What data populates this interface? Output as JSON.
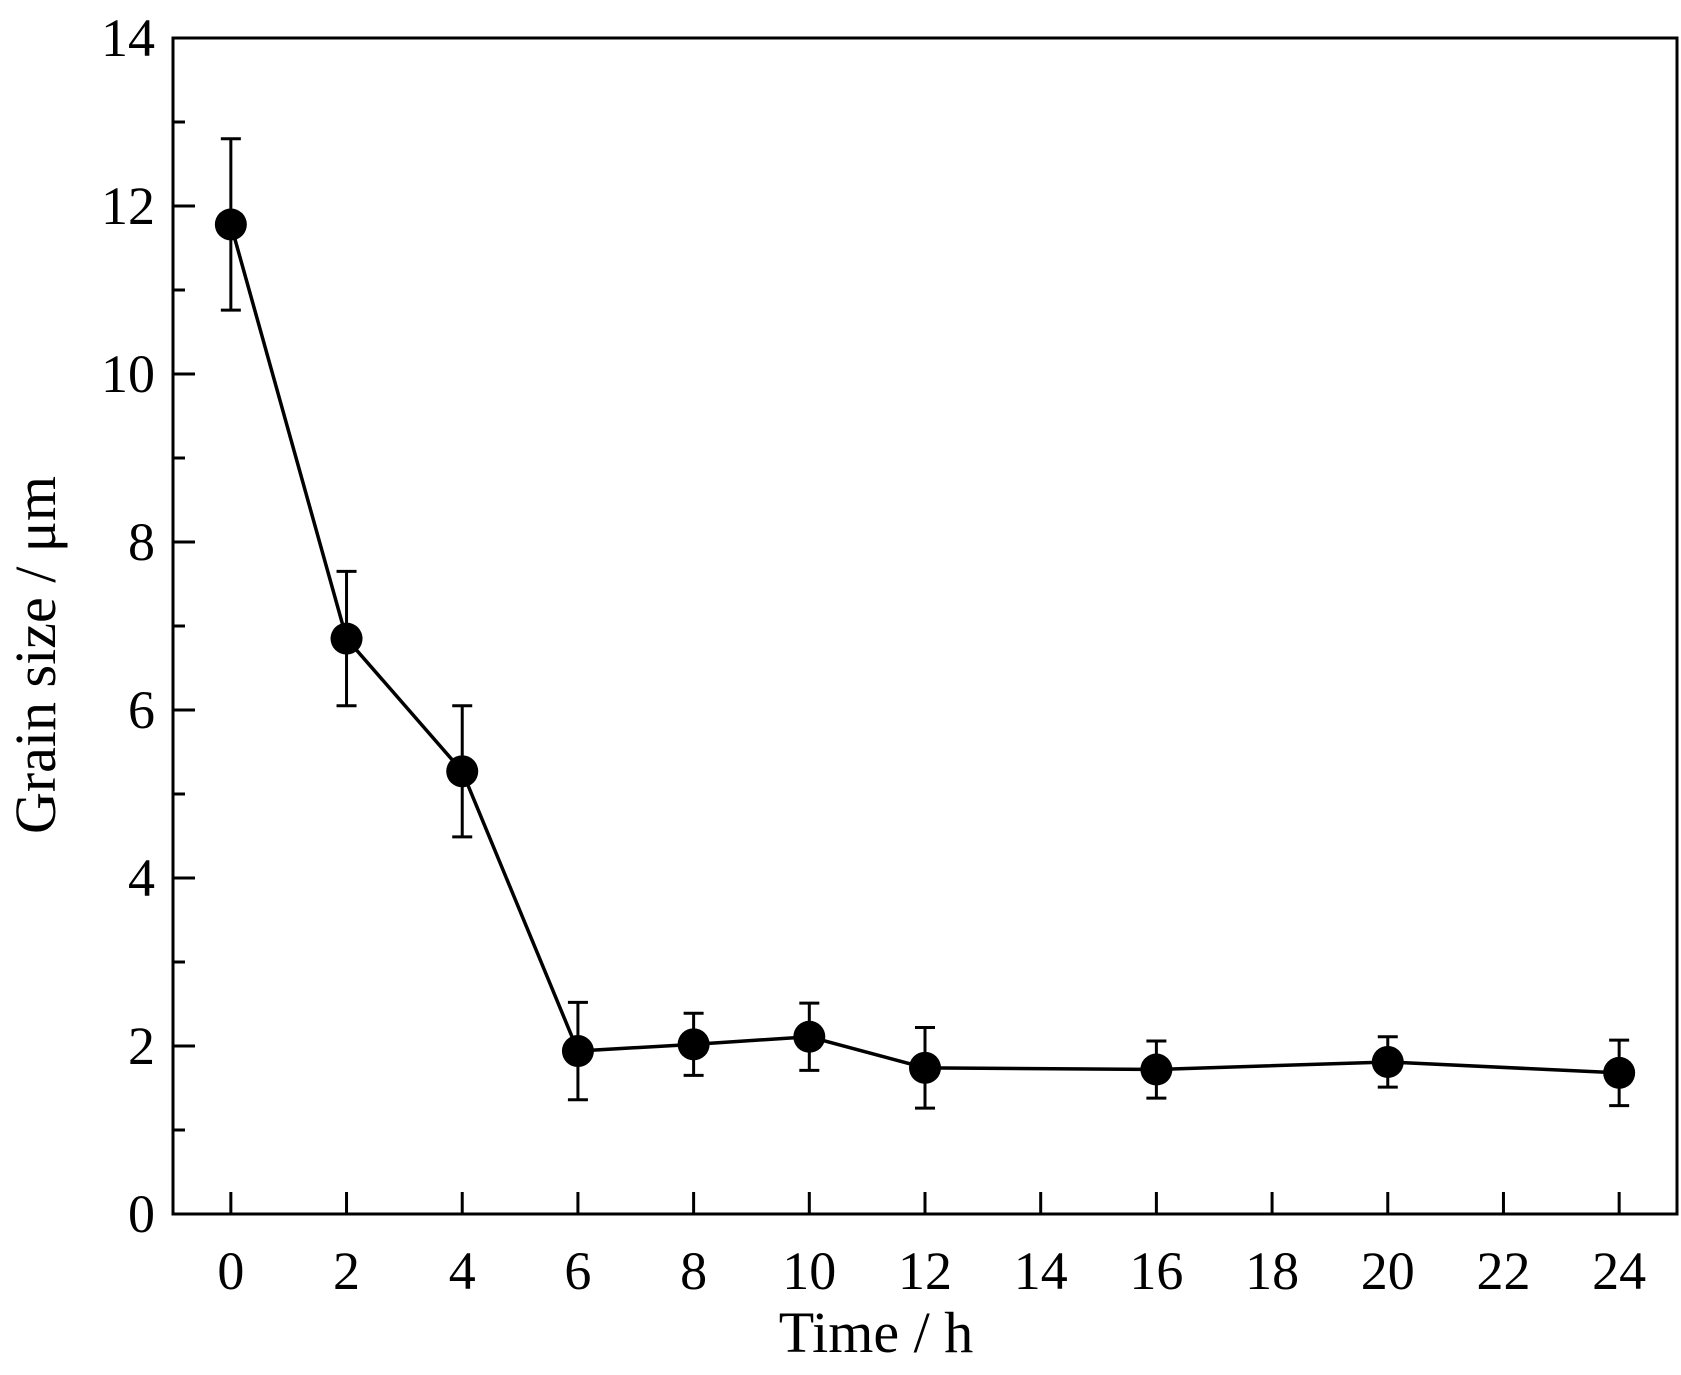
{
  "chart_data": {
    "type": "line",
    "title": "",
    "xlabel": "Time / h",
    "ylabel": "Grain size / μm",
    "xlim": [
      -1,
      25
    ],
    "ylim": [
      0,
      14
    ],
    "x_ticks": [
      0,
      2,
      4,
      6,
      8,
      10,
      12,
      14,
      16,
      18,
      20,
      22,
      24
    ],
    "x_tick_labels": [
      "0",
      "2",
      "4",
      "6",
      "8",
      "10",
      "12",
      "14",
      "16",
      "18",
      "20",
      "22",
      "24"
    ],
    "y_ticks": [
      0,
      2,
      4,
      6,
      8,
      10,
      12,
      14
    ],
    "y_tick_labels": [
      "0",
      "2",
      "4",
      "6",
      "8",
      "10",
      "12",
      "14"
    ],
    "y_minor_step": 1,
    "grid": false,
    "legend": "none",
    "series": [
      {
        "x": [
          0,
          2,
          4,
          6,
          8,
          10,
          12,
          16,
          20,
          24
        ],
        "y": [
          11.78,
          6.85,
          5.27,
          1.94,
          2.02,
          2.11,
          1.74,
          1.72,
          1.81,
          1.68
        ],
        "error": [
          1.02,
          0.8,
          0.78,
          0.58,
          0.37,
          0.4,
          0.48,
          0.34,
          0.3,
          0.39
        ],
        "marker": "filled-circle",
        "color": "#000000"
      }
    ]
  }
}
